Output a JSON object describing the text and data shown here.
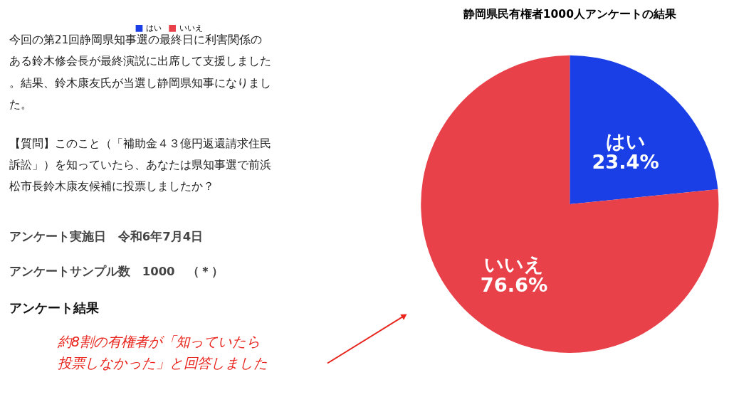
{
  "chart_data": {
    "type": "pie",
    "title": "静岡県民有権者1000人アンケートの結果",
    "categories": [
      "はい",
      "いいえ"
    ],
    "values": [
      23.4,
      76.6
    ],
    "colors": [
      "#1a3fe6",
      "#e8414a"
    ],
    "value_labels": [
      "23.4%",
      "76.6%"
    ],
    "legend": "top",
    "annotations": [
      "今回の第21回静岡県知事選の最終日に利害関係のある鈴木修会長が最終演説に出席して支援しました。結果、鈴木康友氏が当選し静岡県知事になりました。",
      "【質問】このこと（「補助金４３億円返還請求住民訴訟」）を知っていたら、あなたは県知事選で前浜松市長鈴木康友候補に投票しましたか？",
      "アンケート実施日　令和6年7月4日",
      "アンケートサンプル数　1000　（＊）",
      "アンケート結果",
      "約8割の有権者が「知っていたら投票しなかった」と回答しました"
    ]
  }
}
